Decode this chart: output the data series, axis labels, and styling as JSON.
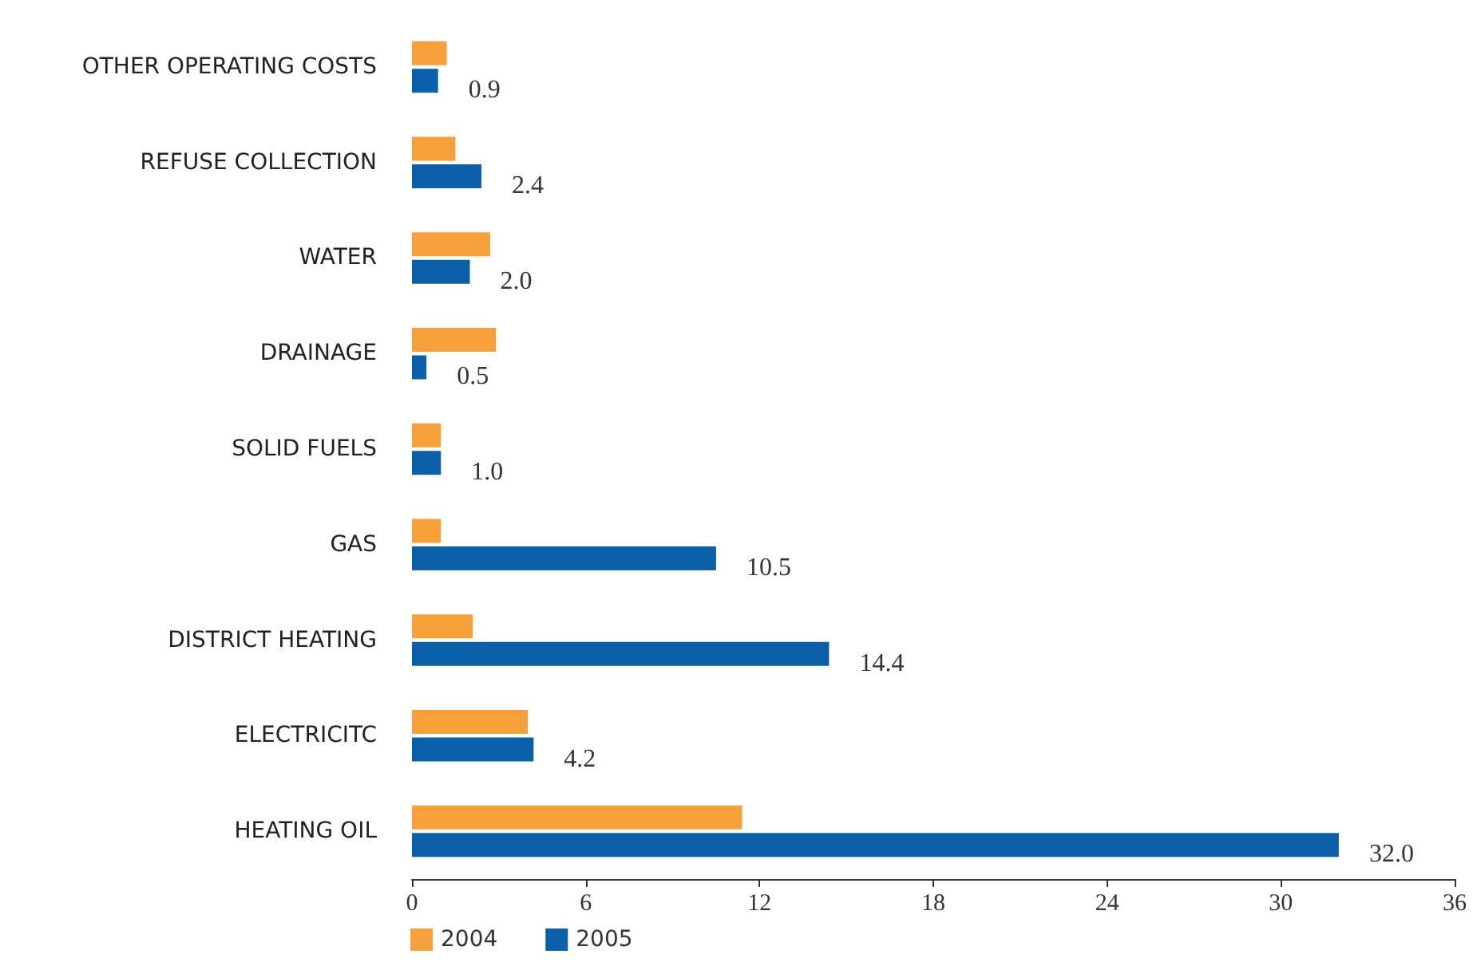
{
  "chart_data": {
    "type": "bar",
    "orientation": "horizontal",
    "categories": [
      "OTHER OPERATING COSTS",
      "REFUSE COLLECTION",
      "WATER",
      "DRAINAGE",
      "SOLID FUELS",
      "GAS",
      "DISTRICT HEATING",
      "ELECTRICITC",
      "HEATING OIL"
    ],
    "series": [
      {
        "name": "2004",
        "color": "#f5a03a",
        "values": [
          1.2,
          1.5,
          2.7,
          2.9,
          1.0,
          1.0,
          2.1,
          4.0,
          11.4
        ]
      },
      {
        "name": "2005",
        "color": "#0b60a9",
        "values": [
          0.9,
          2.4,
          2.0,
          0.5,
          1.0,
          10.5,
          14.4,
          4.2,
          32.0
        ],
        "value_labels": [
          "0.9",
          "2.4",
          "2.0",
          "0.5",
          "1.0",
          "10.5",
          "14.4",
          "4.2",
          "32.0"
        ]
      }
    ],
    "xlim": [
      0,
      36
    ],
    "xticks": [
      0,
      6,
      12,
      18,
      24,
      30,
      36
    ],
    "grid": false,
    "legend": "bottom left"
  }
}
